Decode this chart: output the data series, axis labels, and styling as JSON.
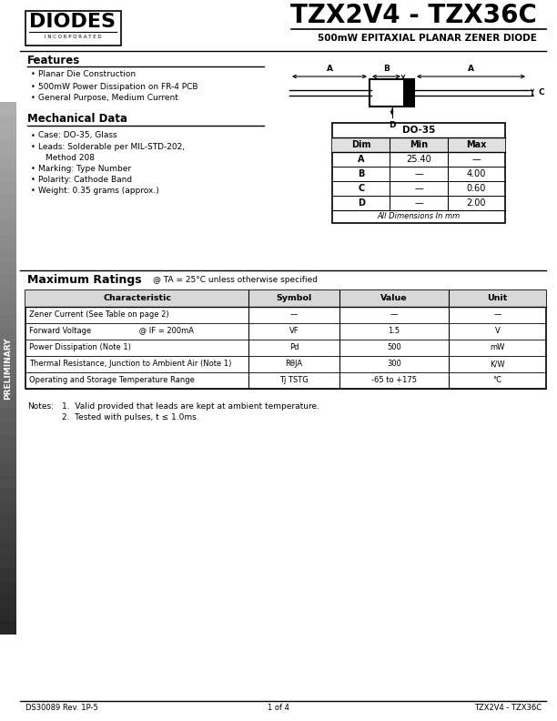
{
  "title": "TZX2V4 - TZX36C",
  "subtitle": "500mW EPITAXIAL PLANAR ZENER DIODE",
  "bg_color": "#ffffff",
  "sidebar_text": "PRELIMINARY",
  "features_title": "Features",
  "features": [
    "Planar Die Construction",
    "500mW Power Dissipation on FR-4 PCB",
    "General Purpose, Medium Current"
  ],
  "mech_title": "Mechanical Data",
  "mech_items": [
    [
      "Case: DO-35, Glass",
      false
    ],
    [
      "Leads: Solderable per MIL-STD-202,",
      false
    ],
    [
      "Method 208",
      true
    ],
    [
      "Marking: Type Number",
      false
    ],
    [
      "Polarity: Cathode Band",
      false
    ],
    [
      "Weight: 0.35 grams (approx.)",
      false
    ]
  ],
  "dim_table_title": "DO-35",
  "dim_headers": [
    "Dim",
    "Min",
    "Max"
  ],
  "dim_rows": [
    [
      "A",
      "25.40",
      "—"
    ],
    [
      "B",
      "—",
      "4.00"
    ],
    [
      "C",
      "—",
      "0.60"
    ],
    [
      "D",
      "—",
      "2.00"
    ]
  ],
  "dim_footer": "All Dimensions In mm",
  "max_ratings_title": "Maximum Ratings",
  "max_ratings_note": "@ TA = 25°C unless otherwise specified",
  "ratings_headers": [
    "Characteristic",
    "Symbol",
    "Value",
    "Unit"
  ],
  "ratings_rows": [
    [
      "Zener Current (See Table on page 2)",
      "—",
      "—",
      "—"
    ],
    [
      "Forward Voltage                    @ IF = 200mA",
      "VF",
      "1.5",
      "V"
    ],
    [
      "Power Dissipation (Note 1)",
      "Pd",
      "500",
      "mW"
    ],
    [
      "Thermal Resistance, Junction to Ambient Air (Note 1)",
      "RθJA",
      "300",
      "K/W"
    ],
    [
      "Operating and Storage Temperature Range",
      "Tj TSTG",
      "-65 to +175",
      "°C"
    ]
  ],
  "notes_label": "Notes:",
  "notes": [
    "1.  Valid provided that leads are kept at ambient temperature.",
    "2.  Tested with pulses, t ≤ 1.0ms."
  ],
  "footer_left": "DS30089 Rev. 1P-5",
  "footer_center": "1 of 4",
  "footer_right": "TZX2V4 - TZX36C"
}
